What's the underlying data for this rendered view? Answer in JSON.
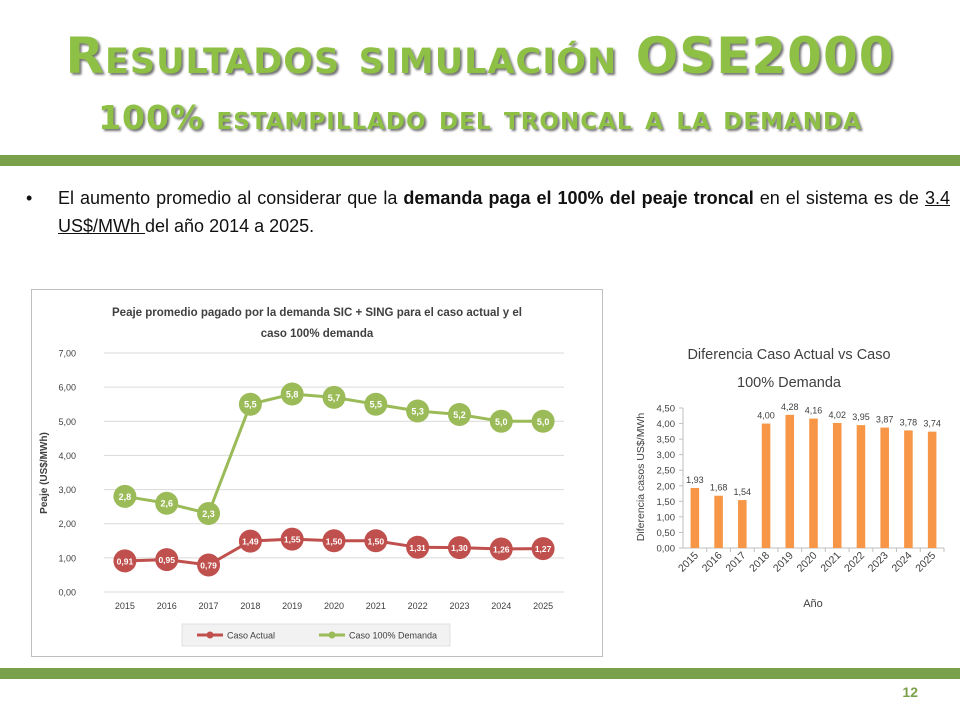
{
  "slide": {
    "title_line1": "Resultados simulación OSE2000",
    "title_line2": "100% estampillado del troncal a la demanda",
    "bullet": {
      "part1": "El aumento promedio al considerar que la ",
      "bold": "demanda paga el 100% del peaje troncal",
      "part2": " en el sistema es de ",
      "underlined": "3.4 US$/MWh ",
      "part3": "del año 2014 a 2025."
    },
    "page_number": "12",
    "accent_color": "#79a14b",
    "title_color": "#8dc044"
  },
  "chart_data": [
    {
      "type": "line",
      "title": "Peaje promedio pagado por la demanda SIC + SING para el caso actual y el caso 100% demanda",
      "title_line1": "Peaje promedio pagado por la demanda SIC + SING para el caso actual y el",
      "title_line2": "caso 100% demanda",
      "xlabel": "",
      "ylabel": "Peaje (US$/MWh)",
      "categories": [
        "2015",
        "2016",
        "2017",
        "2018",
        "2019",
        "2020",
        "2021",
        "2022",
        "2023",
        "2024",
        "2025"
      ],
      "ylim": [
        0,
        7
      ],
      "yticks": [
        "0,00",
        "1,00",
        "2,00",
        "3,00",
        "4,00",
        "5,00",
        "6,00",
        "7,00"
      ],
      "grid": true,
      "legend": "bottom",
      "series": [
        {
          "name": "Caso Actual",
          "color": "#c0504d",
          "values": [
            0.91,
            0.95,
            0.79,
            1.49,
            1.55,
            1.5,
            1.5,
            1.31,
            1.3,
            1.26,
            1.27
          ],
          "labels": [
            "0,91",
            "0,95",
            "0,79",
            "1,49",
            "1,55",
            "1,50",
            "1,50",
            "1,31",
            "1,30",
            "1,26",
            "1,27"
          ]
        },
        {
          "name": "Caso 100% Demanda",
          "color": "#9bbb59",
          "values": [
            2.8,
            2.6,
            2.3,
            5.5,
            5.8,
            5.7,
            5.5,
            5.3,
            5.2,
            5.0,
            5.0
          ],
          "labels": [
            "2,8",
            "2,6",
            "2,3",
            "5,5",
            "5,8",
            "5,7",
            "5,5",
            "5,3",
            "5,2",
            "5,0",
            "5,0"
          ]
        }
      ]
    },
    {
      "type": "bar",
      "title": "Diferencia Caso Actual vs Caso 100% Demanda",
      "title_line1": "Diferencia Caso Actual vs Caso",
      "title_line2": "100% Demanda",
      "xlabel": "Año",
      "ylabel": "Diferencia casos US$/MWh",
      "categories": [
        "2015",
        "2016",
        "2017",
        "2018",
        "2019",
        "2020",
        "2021",
        "2022",
        "2023",
        "2024",
        "2025"
      ],
      "values": [
        1.93,
        1.68,
        1.54,
        4.0,
        4.28,
        4.16,
        4.02,
        3.95,
        3.87,
        3.78,
        3.74
      ],
      "labels": [
        "1,93",
        "1,68",
        "1,54",
        "4,00",
        "4,28",
        "4,16",
        "4,02",
        "3,95",
        "3,87",
        "3,78",
        "3,74"
      ],
      "ylim": [
        0,
        4.5
      ],
      "yticks": [
        "0,00",
        "0,50",
        "1,00",
        "1,50",
        "2,00",
        "2,50",
        "3,00",
        "3,50",
        "4,00",
        "4,50"
      ],
      "color": "#f79646",
      "grid": false
    }
  ]
}
